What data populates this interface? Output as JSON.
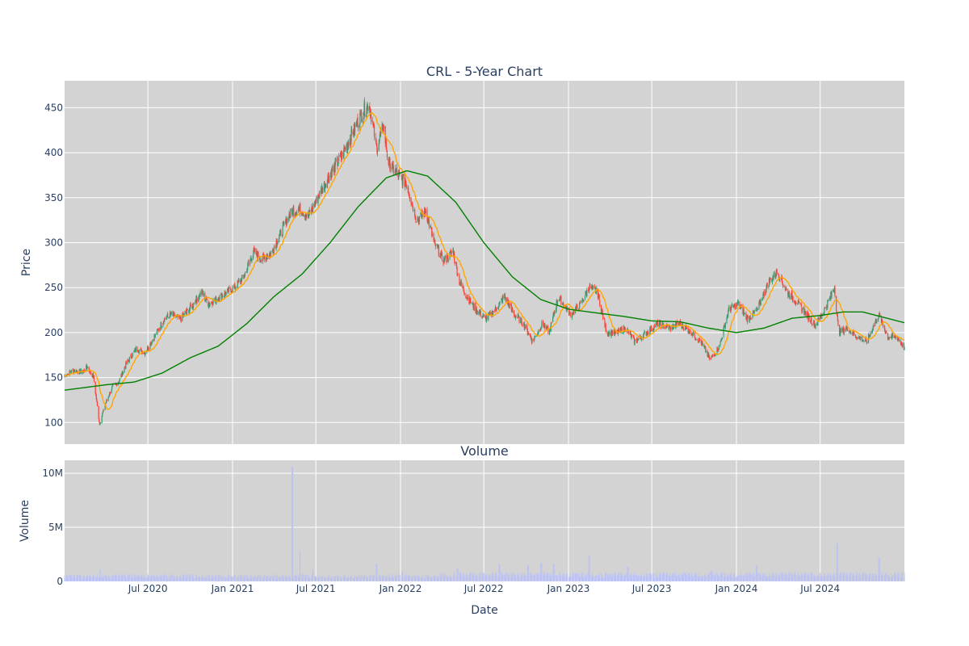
{
  "chart_data": [
    {
      "type": "candlestick",
      "title": "CRL - 5-Year Chart",
      "xlabel": "",
      "ylabel": "Price",
      "ylim": [
        76,
        480
      ],
      "x_range": [
        "2020-01-02",
        "2024-12-31"
      ],
      "yticks": [
        100,
        150,
        200,
        250,
        300,
        350,
        400,
        450
      ],
      "colors": {
        "up": "#3d9970",
        "down": "#ff4136",
        "ma_short": "#ffa500",
        "ma_long": "#008000",
        "plot_bg": "#d3d3d3",
        "grid": "#ffffff"
      },
      "price_anchors": [
        [
          "2020-01-02",
          152
        ],
        [
          "2020-01-20",
          158
        ],
        [
          "2020-02-10",
          156
        ],
        [
          "2020-02-20",
          162
        ],
        [
          "2020-03-05",
          150
        ],
        [
          "2020-03-18",
          98
        ],
        [
          "2020-03-30",
          120
        ],
        [
          "2020-04-15",
          140
        ],
        [
          "2020-04-28",
          145
        ],
        [
          "2020-05-15",
          165
        ],
        [
          "2020-06-05",
          182
        ],
        [
          "2020-06-25",
          178
        ],
        [
          "2020-07-15",
          195
        ],
        [
          "2020-08-05",
          215
        ],
        [
          "2020-08-20",
          220
        ],
        [
          "2020-09-10",
          215
        ],
        [
          "2020-10-05",
          230
        ],
        [
          "2020-10-25",
          245
        ],
        [
          "2020-11-10",
          232
        ],
        [
          "2020-12-05",
          240
        ],
        [
          "2021-01-05",
          250
        ],
        [
          "2021-01-25",
          262
        ],
        [
          "2021-02-15",
          290
        ],
        [
          "2021-03-05",
          282
        ],
        [
          "2021-03-25",
          288
        ],
        [
          "2021-04-15",
          310
        ],
        [
          "2021-05-05",
          332
        ],
        [
          "2021-05-25",
          338
        ],
        [
          "2021-06-15",
          330
        ],
        [
          "2021-07-10",
          355
        ],
        [
          "2021-08-05",
          380
        ],
        [
          "2021-08-25",
          395
        ],
        [
          "2021-09-15",
          418
        ],
        [
          "2021-10-05",
          440
        ],
        [
          "2021-10-25",
          455
        ],
        [
          "2021-11-10",
          405
        ],
        [
          "2021-11-25",
          430
        ],
        [
          "2021-12-05",
          390
        ],
        [
          "2021-12-28",
          375
        ],
        [
          "2022-01-15",
          365
        ],
        [
          "2022-02-05",
          325
        ],
        [
          "2022-02-25",
          335
        ],
        [
          "2022-03-15",
          300
        ],
        [
          "2022-04-05",
          280
        ],
        [
          "2022-04-25",
          290
        ],
        [
          "2022-05-10",
          255
        ],
        [
          "2022-05-25",
          240
        ],
        [
          "2022-06-15",
          225
        ],
        [
          "2022-07-05",
          215
        ],
        [
          "2022-07-25",
          225
        ],
        [
          "2022-08-15",
          240
        ],
        [
          "2022-09-05",
          220
        ],
        [
          "2022-09-25",
          210
        ],
        [
          "2022-10-15",
          190
        ],
        [
          "2022-11-05",
          210
        ],
        [
          "2022-11-20",
          200
        ],
        [
          "2022-12-10",
          240
        ],
        [
          "2023-01-05",
          220
        ],
        [
          "2023-01-25",
          230
        ],
        [
          "2023-02-15",
          250
        ],
        [
          "2023-03-05",
          245
        ],
        [
          "2023-03-25",
          200
        ],
        [
          "2023-04-15",
          200
        ],
        [
          "2023-05-05",
          205
        ],
        [
          "2023-05-25",
          190
        ],
        [
          "2023-06-20",
          200
        ],
        [
          "2023-07-15",
          210
        ],
        [
          "2023-08-10",
          205
        ],
        [
          "2023-08-30",
          210
        ],
        [
          "2023-09-25",
          200
        ],
        [
          "2023-10-15",
          190
        ],
        [
          "2023-11-05",
          170
        ],
        [
          "2023-11-25",
          185
        ],
        [
          "2023-12-15",
          225
        ],
        [
          "2024-01-05",
          232
        ],
        [
          "2024-01-25",
          215
        ],
        [
          "2024-02-15",
          225
        ],
        [
          "2024-03-10",
          255
        ],
        [
          "2024-03-30",
          268
        ],
        [
          "2024-04-20",
          245
        ],
        [
          "2024-05-10",
          235
        ],
        [
          "2024-06-01",
          220
        ],
        [
          "2024-06-20",
          208
        ],
        [
          "2024-07-10",
          225
        ],
        [
          "2024-08-01",
          250
        ],
        [
          "2024-08-10",
          200
        ],
        [
          "2024-08-30",
          205
        ],
        [
          "2024-09-20",
          195
        ],
        [
          "2024-10-10",
          190
        ],
        [
          "2024-11-05",
          220
        ],
        [
          "2024-11-25",
          195
        ],
        [
          "2024-12-15",
          195
        ],
        [
          "2024-12-31",
          183
        ]
      ],
      "ma_long_anchors": [
        [
          "2020-01-02",
          136
        ],
        [
          "2020-04-01",
          142
        ],
        [
          "2020-06-01",
          145
        ],
        [
          "2020-08-01",
          155
        ],
        [
          "2020-10-01",
          172
        ],
        [
          "2020-12-01",
          185
        ],
        [
          "2021-02-01",
          210
        ],
        [
          "2021-04-01",
          240
        ],
        [
          "2021-06-01",
          265
        ],
        [
          "2021-08-01",
          300
        ],
        [
          "2021-10-01",
          340
        ],
        [
          "2021-12-01",
          372
        ],
        [
          "2022-01-15",
          380
        ],
        [
          "2022-03-01",
          374
        ],
        [
          "2022-05-01",
          345
        ],
        [
          "2022-07-01",
          300
        ],
        [
          "2022-09-01",
          262
        ],
        [
          "2022-11-01",
          237
        ],
        [
          "2023-01-01",
          226
        ],
        [
          "2023-03-01",
          222
        ],
        [
          "2023-05-01",
          218
        ],
        [
          "2023-07-01",
          213
        ],
        [
          "2023-09-01",
          212
        ],
        [
          "2023-11-01",
          205
        ],
        [
          "2024-01-01",
          200
        ],
        [
          "2024-03-01",
          205
        ],
        [
          "2024-05-01",
          216
        ],
        [
          "2024-07-01",
          219
        ],
        [
          "2024-08-20",
          223
        ],
        [
          "2024-10-01",
          223
        ],
        [
          "2024-12-31",
          211
        ]
      ]
    },
    {
      "type": "bar",
      "title": "Volume",
      "xlabel": "Date",
      "ylabel": "Volume",
      "ylim": [
        0,
        11200000
      ],
      "yticks": [
        0,
        5000000,
        10000000
      ],
      "ytick_labels": [
        "0",
        "5M",
        "10M"
      ],
      "xticks": [
        "2020-07-01",
        "2021-01-01",
        "2021-07-01",
        "2022-01-01",
        "2022-07-01",
        "2023-01-01",
        "2023-07-01",
        "2024-01-01",
        "2024-07-01"
      ],
      "xtick_labels": [
        "Jul 2020",
        "Jan 2021",
        "Jul 2021",
        "Jan 2022",
        "Jul 2022",
        "Jan 2023",
        "Jul 2023",
        "Jan 2024",
        "Jul 2024"
      ],
      "colors": {
        "bar": "#bcc3f2"
      },
      "baseline_volume": 450000,
      "spikes": [
        [
          "2021-05-11",
          10600000
        ],
        [
          "2021-05-28",
          2800000
        ],
        [
          "2020-03-20",
          1100000
        ],
        [
          "2021-06-25",
          1100000
        ],
        [
          "2021-11-10",
          1600000
        ],
        [
          "2022-01-05",
          900000
        ],
        [
          "2022-05-05",
          1200000
        ],
        [
          "2022-08-04",
          1600000
        ],
        [
          "2022-10-05",
          1500000
        ],
        [
          "2022-11-03",
          1700000
        ],
        [
          "2022-11-30",
          1600000
        ],
        [
          "2023-02-15",
          2400000
        ],
        [
          "2023-05-10",
          1400000
        ],
        [
          "2023-11-08",
          1000000
        ],
        [
          "2024-02-14",
          1500000
        ],
        [
          "2024-08-07",
          3500000
        ],
        [
          "2024-11-06",
          2200000
        ]
      ]
    }
  ]
}
